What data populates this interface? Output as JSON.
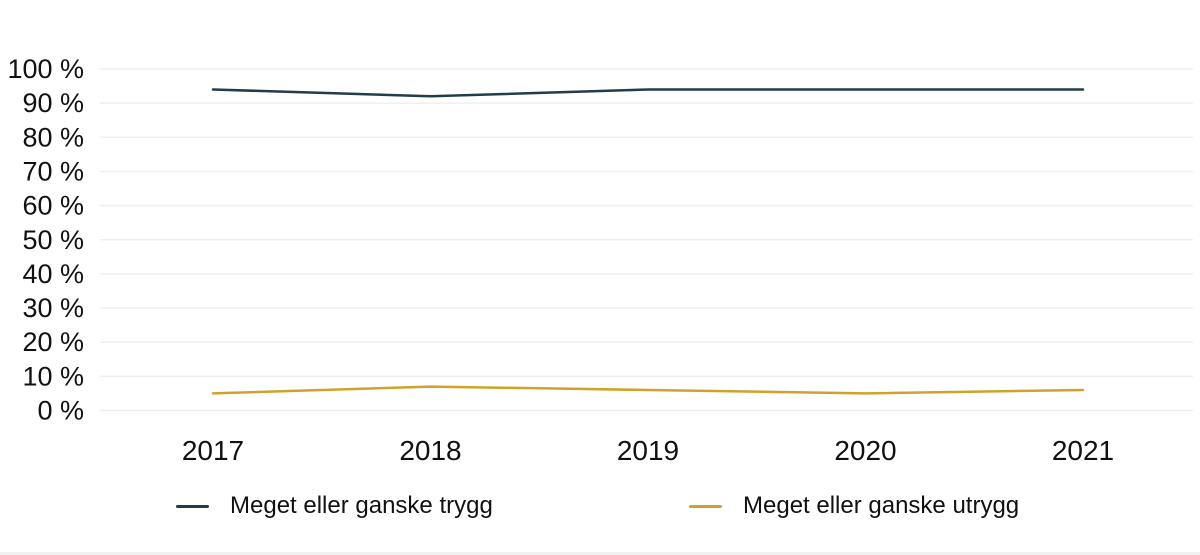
{
  "chart_data": {
    "type": "line",
    "title": "",
    "xlabel": "",
    "ylabel": "",
    "categories": [
      "2017",
      "2018",
      "2019",
      "2020",
      "2021"
    ],
    "series": [
      {
        "name": "Meget eller ganske trygg",
        "color": "#223c4b",
        "values": [
          94,
          92,
          94,
          94,
          94
        ]
      },
      {
        "name": "Meget eller ganske utrygg",
        "color": "#cfa32b",
        "values": [
          5,
          7,
          6,
          5,
          6
        ]
      }
    ],
    "ylim": [
      0,
      100
    ],
    "ytick_labels": [
      "0 %",
      "10 %",
      "20 %",
      "30 %",
      "40 %",
      "50 %",
      "60 %",
      "70 %",
      "80 %",
      "90 %",
      "100 %"
    ],
    "grid": "horizontal-only",
    "gridline_color": "#efefef",
    "legend_position": "bottom",
    "text_color": "#111111"
  }
}
